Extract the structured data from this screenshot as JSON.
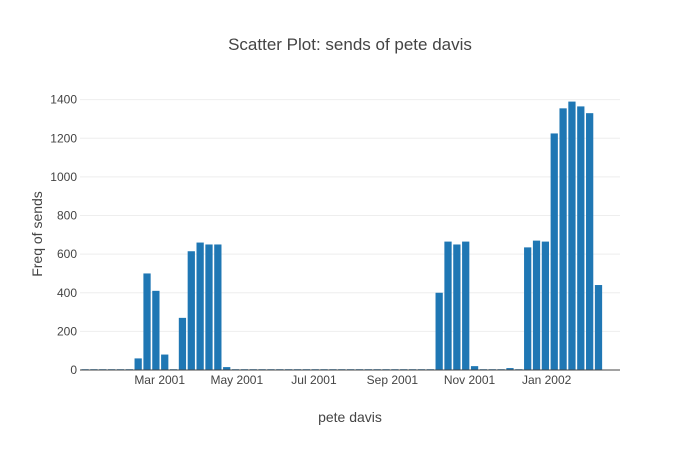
{
  "chart_data": {
    "type": "bar",
    "title": "Scatter Plot: sends of pete davis",
    "xlabel": "pete davis",
    "ylabel": "Freq of sends",
    "ylim": [
      0,
      1450
    ],
    "yticks": [
      0,
      200,
      400,
      600,
      800,
      1000,
      1200,
      1400
    ],
    "xrange": [
      "2000-12-28",
      "2002-02-28"
    ],
    "xticks": [
      {
        "date": "2001-03-01",
        "label": "Mar 2001"
      },
      {
        "date": "2001-05-01",
        "label": "May 2001"
      },
      {
        "date": "2001-07-01",
        "label": "Jul 2001"
      },
      {
        "date": "2001-09-01",
        "label": "Sep 2001"
      },
      {
        "date": "2001-11-01",
        "label": "Nov 2001"
      },
      {
        "date": "2002-01-01",
        "label": "Jan 2002"
      }
    ],
    "grid": true,
    "bar_color": "#1f77b4",
    "x": [
      "2001-01-01",
      "2001-01-08",
      "2001-01-15",
      "2001-01-22",
      "2001-01-29",
      "2001-02-05",
      "2001-02-12",
      "2001-02-19",
      "2001-02-26",
      "2001-03-05",
      "2001-03-12",
      "2001-03-19",
      "2001-03-26",
      "2001-04-02",
      "2001-04-09",
      "2001-04-16",
      "2001-04-23",
      "2001-04-30",
      "2001-05-07",
      "2001-05-14",
      "2001-05-21",
      "2001-05-28",
      "2001-06-04",
      "2001-06-11",
      "2001-06-18",
      "2001-06-25",
      "2001-07-02",
      "2001-07-09",
      "2001-07-16",
      "2001-07-23",
      "2001-07-30",
      "2001-08-06",
      "2001-08-13",
      "2001-08-20",
      "2001-08-27",
      "2001-09-03",
      "2001-09-10",
      "2001-09-17",
      "2001-09-24",
      "2001-10-01",
      "2001-10-08",
      "2001-10-15",
      "2001-10-22",
      "2001-10-29",
      "2001-11-05",
      "2001-11-12",
      "2001-11-19",
      "2001-11-26",
      "2001-12-03",
      "2001-12-10",
      "2001-12-17",
      "2001-12-24",
      "2001-12-31",
      "2002-01-07",
      "2002-01-14",
      "2002-01-21",
      "2002-01-28",
      "2002-02-04",
      "2002-02-11"
    ],
    "values": [
      3,
      2,
      2,
      2,
      2,
      3,
      60,
      500,
      410,
      80,
      2,
      270,
      615,
      660,
      650,
      650,
      15,
      2,
      2,
      2,
      2,
      1,
      1,
      1,
      1,
      1,
      1,
      1,
      1,
      1,
      1,
      1,
      1,
      1,
      1,
      1,
      1,
      1,
      1,
      1,
      400,
      665,
      650,
      665,
      20,
      2,
      3,
      2,
      10,
      2,
      635,
      670,
      665,
      1225,
      1355,
      1390,
      1365,
      1330,
      440
    ]
  }
}
